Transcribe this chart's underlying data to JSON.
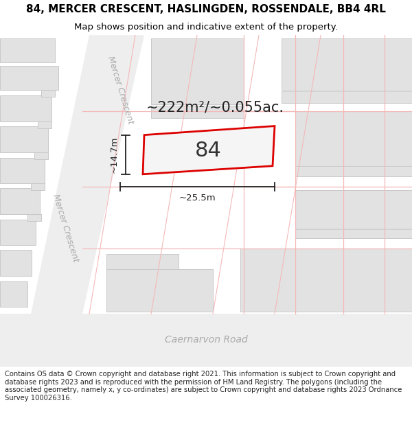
{
  "title_line1": "84, MERCER CRESCENT, HASLINGDEN, ROSSENDALE, BB4 4RL",
  "title_line2": "Map shows position and indicative extent of the property.",
  "footer_text": "Contains OS data © Crown copyright and database right 2021. This information is subject to Crown copyright and database rights 2023 and is reproduced with the permission of\nHM Land Registry. The polygons (including the associated geometry, namely x, y\nco-ordinates) are subject to Crown copyright and database rights 2023 Ordnance Survey\n100026316.",
  "map_bg": "#f2f2f2",
  "building_fill": "#e2e2e2",
  "building_edge": "#c8c8c8",
  "road_fill": "#f2f2f2",
  "pink": "#f5b8b8",
  "red": "#dd0000",
  "dim_color": "#222222",
  "text_gray": "#aaaaaa",
  "white": "#ffffff",
  "property_label": "84",
  "area_label": "~222m²/~0.055ac.",
  "width_label": "~25.5m",
  "height_label": "~14.7m",
  "road1_name": "Mercer Crescent",
  "road2_name": "Mercer Crescent",
  "road3_name": "Caernarvon Road",
  "title_fs": 11,
  "sub_fs": 9.5,
  "footer_fs": 7.2,
  "area_fs": 15,
  "propnum_fs": 22,
  "dim_fs": 9.5,
  "road_fs": 9
}
